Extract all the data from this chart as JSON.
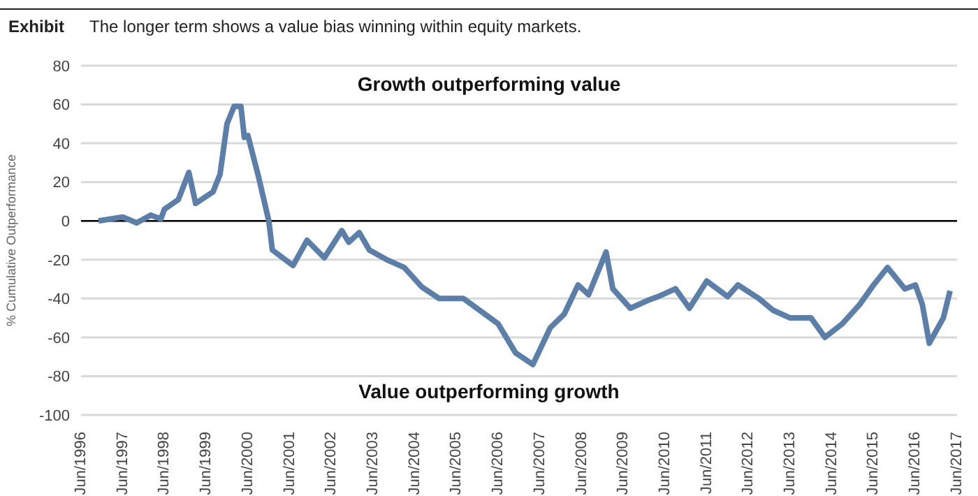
{
  "chart_data": {
    "type": "line",
    "title": "Exhibit",
    "subtitle": "The longer term shows a value bias winning within equity markets.",
    "ylabel": "% Cumulative Outperformance",
    "annotations": [
      "Growth outperforming value",
      "Value outperforming growth"
    ],
    "x": [
      "1996-11",
      "1997-06",
      "1997-10",
      "1998-02",
      "1998-05",
      "1998-06",
      "1998-10",
      "1999-01",
      "1999-03",
      "1999-08",
      "1999-10",
      "1999-12",
      "2000-02",
      "2000-04",
      "2000-05",
      "2000-06",
      "2000-09",
      "2000-12",
      "2001-01",
      "2001-07",
      "2001-11",
      "2002-04",
      "2002-09",
      "2002-11",
      "2003-02",
      "2003-05",
      "2003-10",
      "2004-03",
      "2004-08",
      "2005-01",
      "2005-08",
      "2006-06",
      "2006-11",
      "2007-04",
      "2007-09",
      "2008-01",
      "2008-05",
      "2008-08",
      "2009-01",
      "2009-03",
      "2009-08",
      "2010-01",
      "2010-04",
      "2010-09",
      "2011-01",
      "2011-06",
      "2011-12",
      "2012-03",
      "2012-09",
      "2013-01",
      "2013-06",
      "2013-12",
      "2014-04",
      "2014-09",
      "2015-02",
      "2015-06",
      "2015-10",
      "2016-03",
      "2016-06",
      "2016-08",
      "2016-10",
      "2017-02",
      "2017-04"
    ],
    "series": [
      {
        "color": "#5b7fa8",
        "values": [
          0,
          2,
          -1,
          3,
          1,
          6,
          11,
          25,
          9,
          15,
          24,
          50,
          59,
          59,
          43,
          44,
          23,
          0,
          -15,
          -23,
          -10,
          -19,
          -5,
          -11,
          -6,
          -15,
          -20,
          -24,
          -34,
          -40,
          -40,
          -53,
          -68,
          -74,
          -55,
          -48,
          -33,
          -38,
          -16,
          -35,
          -45,
          -41,
          -39,
          -35,
          -45,
          -31,
          -39,
          -33,
          -40,
          -46,
          -50,
          -50,
          -60,
          -53,
          -43,
          -33,
          -24,
          -35,
          -33,
          -43,
          -63,
          -50,
          -36
        ]
      }
    ],
    "xlim": [
      "1996-06",
      "2017-06"
    ],
    "xticks": [
      {
        "value": "1996-06",
        "label": "Jun/1996"
      },
      {
        "value": "1997-06",
        "label": "Jun/1997"
      },
      {
        "value": "1998-06",
        "label": "Jun/1998"
      },
      {
        "value": "1999-06",
        "label": "Jun/1999"
      },
      {
        "value": "2000-06",
        "label": "Jun/2000"
      },
      {
        "value": "2001-06",
        "label": "Jun/2001"
      },
      {
        "value": "2002-06",
        "label": "Jun/2002"
      },
      {
        "value": "2003-06",
        "label": "Jun/2003"
      },
      {
        "value": "2004-06",
        "label": "Jun/2004"
      },
      {
        "value": "2005-06",
        "label": "Jun/2005"
      },
      {
        "value": "2006-06",
        "label": "Jun/2006"
      },
      {
        "value": "2007-06",
        "label": "Jun/2007"
      },
      {
        "value": "2008-06",
        "label": "Jun/2008"
      },
      {
        "value": "2009-06",
        "label": "Jun/2009"
      },
      {
        "value": "2010-06",
        "label": "Jun/2010"
      },
      {
        "value": "2011-06",
        "label": "Jun/2011"
      },
      {
        "value": "2012-06",
        "label": "Jun/2012"
      },
      {
        "value": "2013-06",
        "label": "Jun/2013"
      },
      {
        "value": "2014-06",
        "label": "Jun/2014"
      },
      {
        "value": "2015-06",
        "label": "Jun/2015"
      },
      {
        "value": "2016-06",
        "label": "Jun/2016"
      },
      {
        "value": "2017-06",
        "label": "Jun/2017"
      }
    ],
    "ylim": [
      -100,
      80
    ],
    "yticks": [
      -100,
      -80,
      -60,
      -40,
      -20,
      0,
      20,
      40,
      60,
      80
    ],
    "ref_lines": [
      {
        "axis": "y",
        "value": 0,
        "color": "#000000"
      }
    ],
    "grid": "y",
    "marker": "none",
    "line_style": "solid"
  }
}
